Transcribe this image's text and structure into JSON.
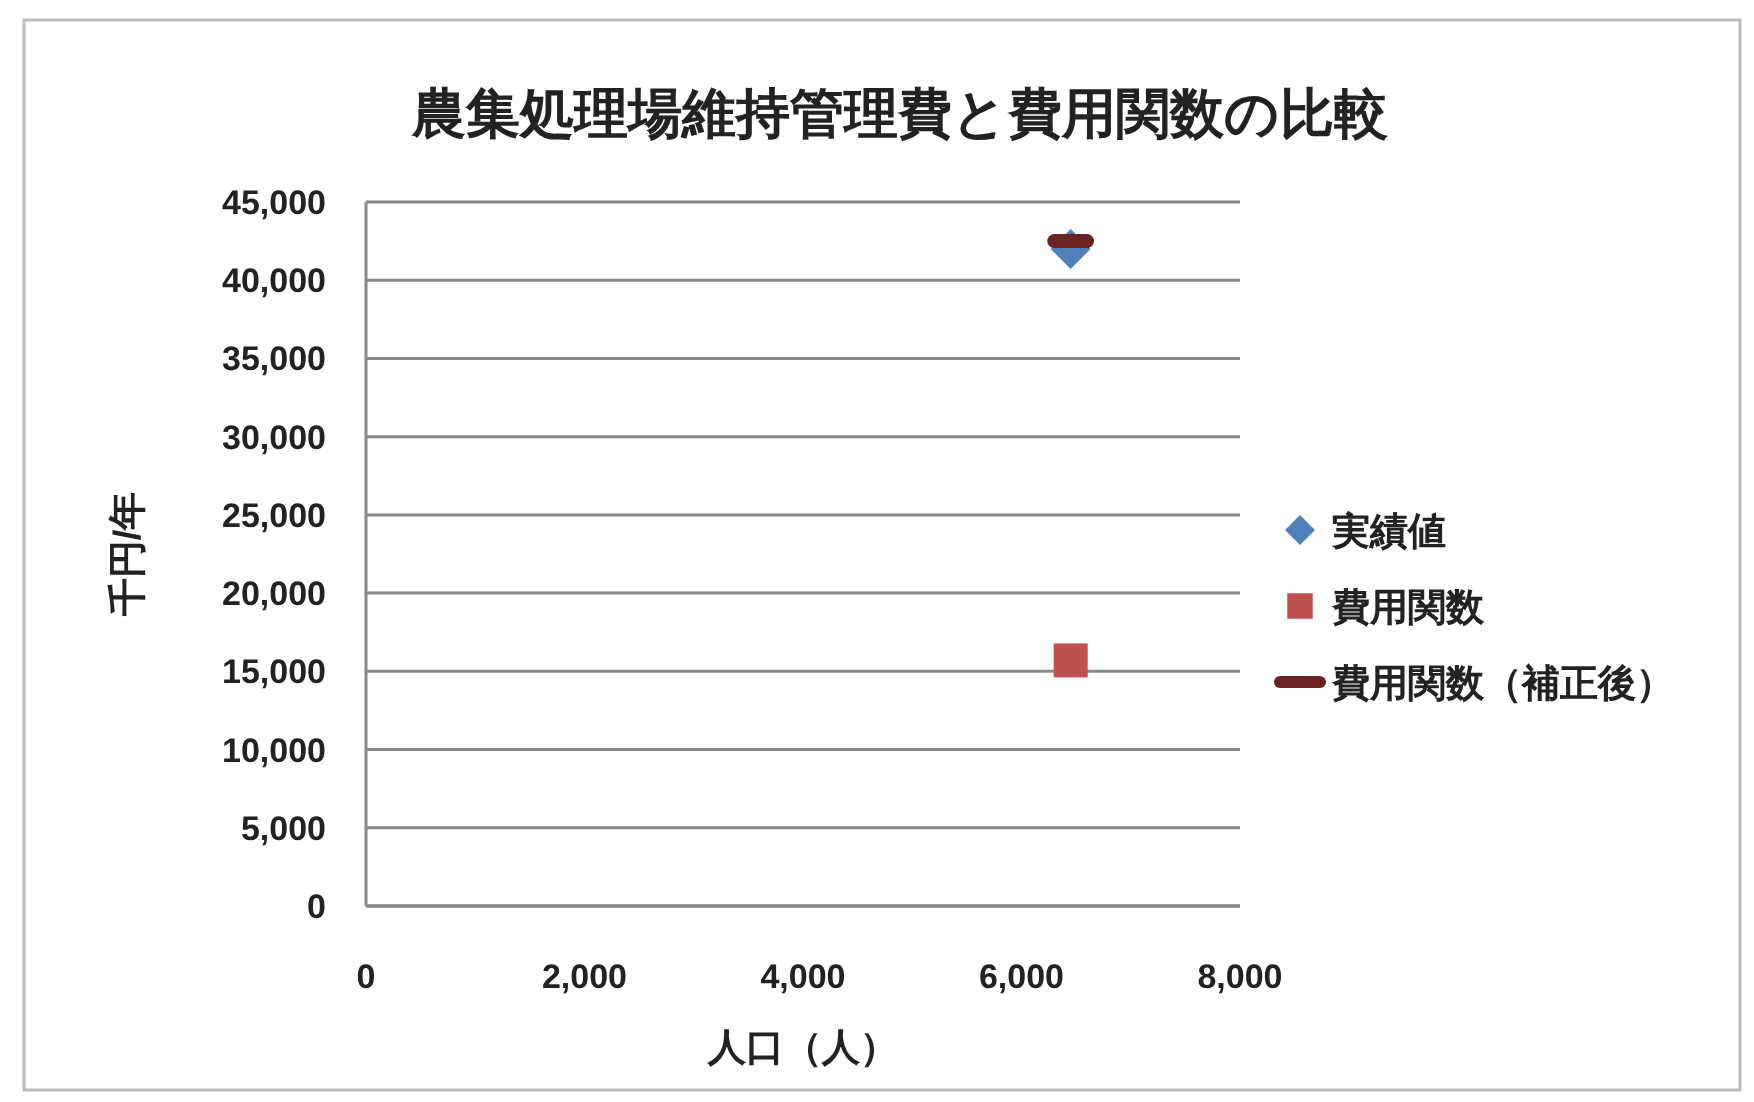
{
  "chart_data": {
    "type": "scatter",
    "title": "農集処理場維持管理費と費用関数の比較",
    "xlabel": "人口（人）",
    "ylabel": "千円/年",
    "xlim": [
      0,
      8000
    ],
    "xticks": [
      {
        "value": 0,
        "label": "0"
      },
      {
        "value": 2000,
        "label": "2,000"
      },
      {
        "value": 4000,
        "label": "4,000"
      },
      {
        "value": 6000,
        "label": "6,000"
      },
      {
        "value": 8000,
        "label": "8,000"
      }
    ],
    "ylim": [
      0,
      45000
    ],
    "yticks": [
      {
        "value": 0,
        "label": "0"
      },
      {
        "value": 5000,
        "label": "5,000"
      },
      {
        "value": 10000,
        "label": "10,000"
      },
      {
        "value": 15000,
        "label": "15,000"
      },
      {
        "value": 20000,
        "label": "20,000"
      },
      {
        "value": 25000,
        "label": "25,000"
      },
      {
        "value": 30000,
        "label": "30,000"
      },
      {
        "value": 35000,
        "label": "35,000"
      },
      {
        "value": 40000,
        "label": "40,000"
      },
      {
        "value": 45000,
        "label": "45,000"
      }
    ],
    "grid": "y",
    "legend": "right",
    "series": [
      {
        "name": "実績値",
        "color": "#4f81bd",
        "marker": "diamond",
        "x": [
          6450
        ],
        "values": [
          42000
        ]
      },
      {
        "name": "費用関数",
        "color": "#c0504d",
        "marker": "square",
        "x": [
          6450
        ],
        "values": [
          15700
        ]
      },
      {
        "name": "費用関数（補正後）",
        "color": "#6b2222",
        "type": "line",
        "marker": "none",
        "x": [
          6300,
          6600
        ],
        "values": [
          42500,
          42500
        ]
      }
    ]
  }
}
